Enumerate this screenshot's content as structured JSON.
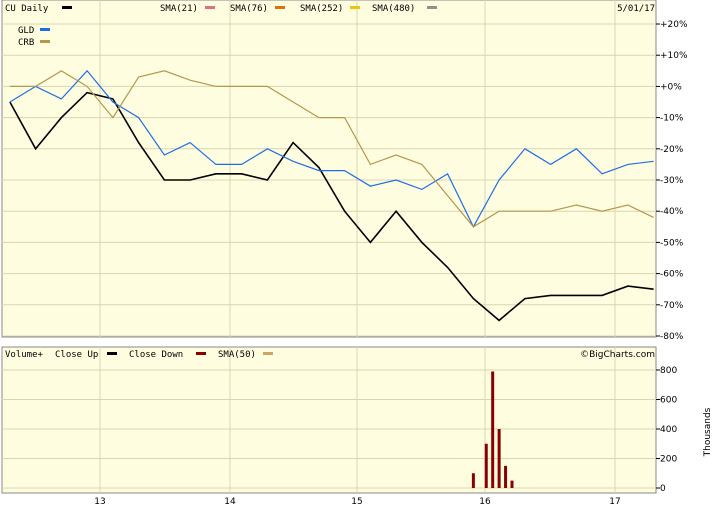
{
  "colors": {
    "background": "#fffde0",
    "grid": "#d8d6b0",
    "price": "#000000",
    "sma21": "#e07080",
    "sma76": "#e07010",
    "sma252": "#ecc40c",
    "sma480": "#909090",
    "gld": "#1e6ee8",
    "crb": "#b4984c",
    "trend_blue": "#2233cc",
    "trend_brown": "#7a2020",
    "trend_purple": "#aa55cc",
    "close_down": "#880000",
    "volume_sma": "#c8a860"
  },
  "legend": {
    "symbol": "CU Daily",
    "date": "5/01/17",
    "sma21": "SMA(21)",
    "sma76": "SMA(76)",
    "sma252": "SMA(252)",
    "sma480": "SMA(480)",
    "gld": "GLD",
    "crb": "CRB"
  },
  "volume_legend": {
    "label1": "Volume+",
    "label2": "Close Up",
    "label3": "Close Down",
    "label4": "SMA(50)",
    "brand": "©BigCharts.com",
    "unit": "Thousands"
  },
  "chart_data": [
    {
      "type": "line",
      "title": "CU Daily",
      "x_ticks": [
        "13",
        "14",
        "15",
        "16",
        "17"
      ],
      "y_ticks": [
        "+20%",
        "+10%",
        "+0%",
        "-10%",
        "-20%",
        "-30%",
        "-40%",
        "-50%",
        "-60%",
        "-70%",
        "-80%"
      ],
      "ylim": [
        -80,
        20
      ],
      "grid": true,
      "legend_position": "top-left",
      "x": [
        12.3,
        12.5,
        12.7,
        12.9,
        13.1,
        13.3,
        13.5,
        13.7,
        13.9,
        14.1,
        14.3,
        14.5,
        14.7,
        14.9,
        15.1,
        15.3,
        15.5,
        15.7,
        15.9,
        16.1,
        16.3,
        16.5,
        16.7,
        16.9,
        17.1,
        17.3
      ],
      "series": [
        {
          "name": "CU",
          "values": [
            -5,
            -20,
            -10,
            -2,
            -4,
            -18,
            -30,
            -30,
            -28,
            -28,
            -30,
            -18,
            -26,
            -40,
            -50,
            -40,
            -50,
            -58,
            -68,
            -75,
            -68,
            -67,
            -67,
            -67,
            -64,
            -65
          ]
        },
        {
          "name": "GLD",
          "values": [
            -5,
            0,
            -4,
            5,
            -5,
            -10,
            -22,
            -18,
            -25,
            -25,
            -20,
            -24,
            -27,
            -27,
            -32,
            -30,
            -33,
            -28,
            -45,
            -30,
            -20,
            -25,
            -20,
            -28,
            -25,
            -24
          ]
        },
        {
          "name": "CRB",
          "values": [
            0,
            0,
            5,
            0,
            -10,
            3,
            5,
            2,
            0,
            0,
            0,
            -5,
            -10,
            -10,
            -25,
            -22,
            -25,
            -35,
            -45,
            -40,
            -40,
            -40,
            -38,
            -40,
            -38,
            -42
          ]
        }
      ]
    },
    {
      "type": "bar",
      "title": "Volume",
      "x_ticks": [
        "13",
        "14",
        "15",
        "16",
        "17"
      ],
      "y_ticks": [
        "800",
        "600",
        "400",
        "200",
        "0"
      ],
      "ylim": [
        0,
        800
      ],
      "grid": true,
      "x": [
        15.9,
        16.0,
        16.05,
        16.1,
        16.15,
        16.2
      ],
      "values": [
        100,
        300,
        790,
        400,
        150,
        50
      ]
    }
  ]
}
